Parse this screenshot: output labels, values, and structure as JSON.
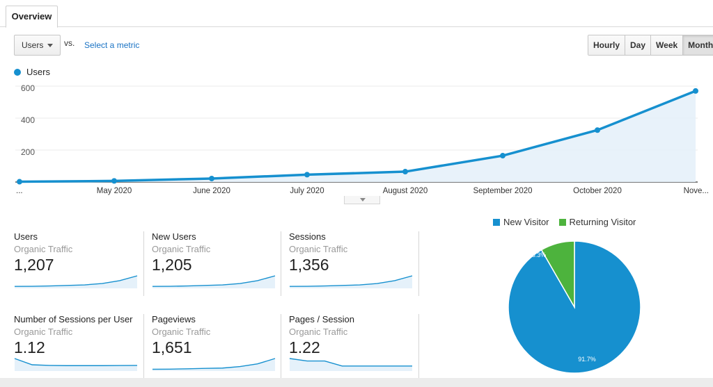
{
  "tabs": {
    "overview": "Overview"
  },
  "controls": {
    "metric_select": "Users",
    "vs_label": "vs.",
    "select_metric_link": "Select a metric",
    "granularity": [
      "Hourly",
      "Day",
      "Week",
      "Month"
    ],
    "granularity_selected": "Month"
  },
  "colors": {
    "primary": "#1690cf",
    "secondary": "#4db33d",
    "fill": "#e5f1fa"
  },
  "chart_data": [
    {
      "type": "area",
      "title": "",
      "series": [
        {
          "name": "Users",
          "values": [
            2,
            7,
            22,
            46,
            65,
            165,
            325,
            570
          ]
        }
      ],
      "categories": [
        "...",
        "May 2020",
        "June 2020",
        "July 2020",
        "August 2020",
        "September 2020",
        "October 2020",
        "Nove..."
      ],
      "yticks": [
        "600",
        "400",
        "200"
      ],
      "ylim": [
        0,
        600
      ],
      "legend": "top-left",
      "grid": true
    },
    {
      "type": "pie",
      "series": [
        {
          "name": "New Visitor",
          "value": 91.7
        },
        {
          "name": "Returning Visitor",
          "value": 8.3
        }
      ],
      "labels": [
        "91.7%",
        "8.3%"
      ],
      "legend": "top"
    }
  ],
  "scorecards": [
    {
      "title": "Users",
      "subtitle": "Organic Traffic",
      "value": "1,207",
      "trend": [
        2,
        2.1,
        2.5,
        3,
        3.6,
        5,
        8,
        13
      ]
    },
    {
      "title": "New Users",
      "subtitle": "Organic Traffic",
      "value": "1,205",
      "trend": [
        2,
        2.1,
        2.5,
        3,
        3.6,
        5,
        8,
        13
      ]
    },
    {
      "title": "Sessions",
      "subtitle": "Organic Traffic",
      "value": "1,356",
      "trend": [
        2,
        2.1,
        2.5,
        3,
        3.6,
        5,
        8,
        13
      ]
    },
    {
      "title": "Number of Sessions per User",
      "subtitle": "Organic Traffic",
      "value": "1.12",
      "trend": [
        10,
        5,
        4.5,
        4.3,
        4.3,
        4.3,
        4.4,
        4.5
      ]
    },
    {
      "title": "Pageviews",
      "subtitle": "Organic Traffic",
      "value": "1,651",
      "trend": [
        2,
        2.1,
        2.5,
        3,
        3.3,
        5,
        8,
        14
      ]
    },
    {
      "title": "Pages / Session",
      "subtitle": "Organic Traffic",
      "value": "1.22",
      "trend": [
        10,
        8,
        8,
        4,
        4,
        4,
        4,
        4
      ]
    }
  ]
}
